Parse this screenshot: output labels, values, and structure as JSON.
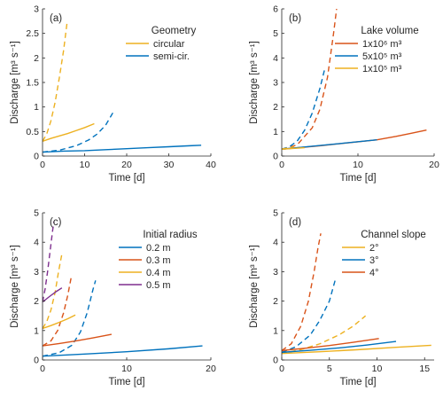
{
  "colors": {
    "blue": "#0072BD",
    "orange": "#D95319",
    "yellow": "#EDB120",
    "purple": "#7E2F8E",
    "axis": "#262626"
  },
  "chart_data": [
    {
      "id": "a",
      "type": "line",
      "panel_label": "(a)",
      "xlabel": "Time [d]",
      "ylabel": "Discharge [m³ s⁻¹]",
      "xlim": [
        0,
        40
      ],
      "ylim": [
        0,
        3
      ],
      "xticks": [
        0,
        10,
        20,
        30,
        40
      ],
      "xtick_labels": [
        "0",
        "10",
        "20",
        "30",
        "40"
      ],
      "yticks": [
        0,
        0.5,
        1,
        1.5,
        2,
        2.5,
        3
      ],
      "ytick_labels": [
        "0",
        "0.5",
        "1",
        "1.5",
        "2",
        "2.5",
        "3"
      ],
      "legend": {
        "title": "Geometry",
        "position": "upper-right",
        "entries": [
          {
            "label": "circular",
            "color": "#EDB120"
          },
          {
            "label": "semi-cir.",
            "color": "#0072BD"
          }
        ]
      },
      "series": [
        {
          "name": "circular",
          "color": "#EDB120",
          "style": "solid",
          "points": [
            [
              0,
              0.3
            ],
            [
              2,
              0.36
            ],
            [
              4,
              0.41
            ],
            [
              6,
              0.46
            ],
            [
              8,
              0.52
            ],
            [
              10,
              0.58
            ],
            [
              12.3,
              0.66
            ]
          ]
        },
        {
          "color": "#EDB120",
          "style": "dashed",
          "points": [
            [
              0,
              0.3
            ],
            [
              1,
              0.45
            ],
            [
              2,
              0.72
            ],
            [
              3,
              1.1
            ],
            [
              4,
              1.6
            ],
            [
              5,
              2.15
            ],
            [
              5.8,
              2.7
            ]
          ]
        },
        {
          "name": "semi-cir.",
          "color": "#0072BD",
          "style": "solid",
          "points": [
            [
              0,
              0.08
            ],
            [
              5,
              0.1
            ],
            [
              10,
              0.11
            ],
            [
              15,
              0.13
            ],
            [
              20,
              0.15
            ],
            [
              25,
              0.17
            ],
            [
              30,
              0.19
            ],
            [
              35,
              0.21
            ],
            [
              37.7,
              0.22
            ]
          ]
        },
        {
          "color": "#0072BD",
          "style": "dashed",
          "points": [
            [
              0,
              0.08
            ],
            [
              4,
              0.12
            ],
            [
              8,
              0.21
            ],
            [
              11,
              0.33
            ],
            [
              13,
              0.45
            ],
            [
              15,
              0.63
            ],
            [
              16.7,
              0.88
            ]
          ]
        }
      ]
    },
    {
      "id": "b",
      "type": "line",
      "panel_label": "(b)",
      "xlabel": "Time [d]",
      "ylabel": "Discharge [m³ s⁻¹]",
      "xlim": [
        0,
        20
      ],
      "ylim": [
        0,
        6
      ],
      "xticks": [
        0,
        10,
        20
      ],
      "xtick_labels": [
        "0",
        "10",
        "20"
      ],
      "yticks": [
        0,
        1,
        2,
        3,
        4,
        5,
        6
      ],
      "ytick_labels": [
        "0",
        "1",
        "2",
        "3",
        "4",
        "5",
        "6"
      ],
      "legend": {
        "title": "Lake volume",
        "position": "upper-right",
        "entries": [
          {
            "label": "1x10⁶ m³",
            "color": "#D95319"
          },
          {
            "label": "5x10⁵ m³",
            "color": "#0072BD"
          },
          {
            "label": "1x10⁵ m³",
            "color": "#EDB120"
          }
        ]
      },
      "series": [
        {
          "name": "1x10⁶ m³",
          "color": "#D95319",
          "style": "solid",
          "points": [
            [
              0,
              0.28
            ],
            [
              5,
              0.42
            ],
            [
              10,
              0.58
            ],
            [
              12.5,
              0.66
            ],
            [
              15,
              0.8
            ],
            [
              17,
              0.93
            ],
            [
              19,
              1.06
            ]
          ]
        },
        {
          "color": "#D95319",
          "style": "dashed",
          "points": [
            [
              0,
              0.28
            ],
            [
              2,
              0.45
            ],
            [
              4,
              1.15
            ],
            [
              5,
              1.9
            ],
            [
              6,
              3.2
            ],
            [
              6.8,
              5.0
            ],
            [
              7.2,
              6.0
            ]
          ]
        },
        {
          "name": "5x10⁵ m³",
          "color": "#0072BD",
          "style": "solid",
          "points": [
            [
              0,
              0.28
            ],
            [
              4,
              0.4
            ],
            [
              8,
              0.52
            ],
            [
              12.5,
              0.66
            ]
          ]
        },
        {
          "color": "#0072BD",
          "style": "dashed",
          "points": [
            [
              0,
              0.28
            ],
            [
              1,
              0.38
            ],
            [
              2,
              0.6
            ],
            [
              3,
              1.05
            ],
            [
              4,
              1.75
            ],
            [
              5,
              2.75
            ],
            [
              5.6,
              3.5
            ]
          ]
        },
        {
          "name": "1x10⁵ m³",
          "color": "#EDB120",
          "style": "solid",
          "points": [
            [
              0,
              0.28
            ],
            [
              1.5,
              0.31
            ],
            [
              3,
              0.34
            ]
          ]
        },
        {
          "color": "#EDB120",
          "style": "dashed",
          "points": [
            [
              0,
              0.28
            ],
            [
              0.8,
              0.33
            ],
            [
              1.6,
              0.38
            ]
          ]
        }
      ]
    },
    {
      "id": "c",
      "type": "line",
      "panel_label": "(c)",
      "xlabel": "Time [d]",
      "ylabel": "Discharge [m³ s⁻¹]",
      "xlim": [
        0,
        20
      ],
      "ylim": [
        0,
        5
      ],
      "xticks": [
        0,
        10,
        20
      ],
      "xtick_labels": [
        "0",
        "10",
        "20"
      ],
      "yticks": [
        0,
        1,
        2,
        3,
        4,
        5
      ],
      "ytick_labels": [
        "0",
        "1",
        "2",
        "3",
        "4",
        "5"
      ],
      "legend": {
        "title": "Initial radius",
        "position": "upper-right",
        "entries": [
          {
            "label": "0.2 m",
            "color": "#0072BD"
          },
          {
            "label": "0.3 m",
            "color": "#D95319"
          },
          {
            "label": "0.4 m",
            "color": "#EDB120"
          },
          {
            "label": "0.5 m",
            "color": "#7E2F8E"
          }
        ]
      },
      "series": [
        {
          "name": "0.2 m",
          "color": "#0072BD",
          "style": "solid",
          "points": [
            [
              0,
              0.13
            ],
            [
              5,
              0.2
            ],
            [
              10,
              0.28
            ],
            [
              15,
              0.38
            ],
            [
              19,
              0.48
            ]
          ]
        },
        {
          "color": "#0072BD",
          "style": "dashed",
          "points": [
            [
              0,
              0.13
            ],
            [
              2,
              0.25
            ],
            [
              3.5,
              0.5
            ],
            [
              4.5,
              0.95
            ],
            [
              5.3,
              1.6
            ],
            [
              6,
              2.4
            ],
            [
              6.3,
              2.7
            ]
          ]
        },
        {
          "name": "0.3 m",
          "color": "#D95319",
          "style": "solid",
          "points": [
            [
              0,
              0.48
            ],
            [
              2,
              0.56
            ],
            [
              4,
              0.65
            ],
            [
              6,
              0.75
            ],
            [
              8.2,
              0.87
            ]
          ]
        },
        {
          "color": "#D95319",
          "style": "dashed",
          "points": [
            [
              0,
              0.48
            ],
            [
              1,
              0.65
            ],
            [
              1.8,
              1.0
            ],
            [
              2.5,
              1.6
            ],
            [
              3,
              2.2
            ],
            [
              3.4,
              2.8
            ]
          ]
        },
        {
          "name": "0.4 m",
          "color": "#EDB120",
          "style": "solid",
          "points": [
            [
              0,
              1.07
            ],
            [
              1,
              1.17
            ],
            [
              2,
              1.28
            ],
            [
              3,
              1.4
            ],
            [
              3.9,
              1.53
            ]
          ]
        },
        {
          "color": "#EDB120",
          "style": "dashed",
          "points": [
            [
              0,
              1.07
            ],
            [
              0.5,
              1.3
            ],
            [
              1,
              1.7
            ],
            [
              1.5,
              2.3
            ],
            [
              1.9,
              3.0
            ],
            [
              2.3,
              3.6
            ]
          ]
        },
        {
          "name": "0.5 m",
          "color": "#7E2F8E",
          "style": "solid",
          "points": [
            [
              0,
              1.97
            ],
            [
              0.8,
              2.15
            ],
            [
              1.6,
              2.32
            ],
            [
              2.3,
              2.45
            ]
          ]
        },
        {
          "color": "#7E2F8E",
          "style": "dashed",
          "points": [
            [
              0,
              1.97
            ],
            [
              0.3,
              2.4
            ],
            [
              0.6,
              3.0
            ],
            [
              0.9,
              3.7
            ],
            [
              1.2,
              4.4
            ],
            [
              1.35,
              4.7
            ]
          ]
        }
      ]
    },
    {
      "id": "d",
      "type": "line",
      "panel_label": "(d)",
      "xlabel": "Time [d]",
      "ylabel": "Discharge [m³ s⁻¹]",
      "xlim": [
        0,
        16
      ],
      "ylim": [
        0,
        5
      ],
      "xticks": [
        0,
        5,
        10,
        15
      ],
      "xtick_labels": [
        "0",
        "5",
        "10",
        "15"
      ],
      "yticks": [
        0,
        1,
        2,
        3,
        4,
        5
      ],
      "ytick_labels": [
        "0",
        "1",
        "2",
        "3",
        "4",
        "5"
      ],
      "legend": {
        "title": "Channel slope",
        "position": "upper-right",
        "entries": [
          {
            "label": "2°",
            "color": "#EDB120"
          },
          {
            "label": "3°",
            "color": "#0072BD"
          },
          {
            "label": "4°",
            "color": "#D95319"
          }
        ]
      },
      "series": [
        {
          "name": "2°",
          "color": "#EDB120",
          "style": "solid",
          "points": [
            [
              0,
              0.22
            ],
            [
              4,
              0.28
            ],
            [
              8,
              0.35
            ],
            [
              12,
              0.43
            ],
            [
              15.7,
              0.5
            ]
          ]
        },
        {
          "color": "#EDB120",
          "style": "dashed",
          "points": [
            [
              0,
              0.22
            ],
            [
              2,
              0.35
            ],
            [
              4,
              0.55
            ],
            [
              6,
              0.85
            ],
            [
              7.5,
              1.15
            ],
            [
              8.8,
              1.5
            ]
          ]
        },
        {
          "name": "3°",
          "color": "#0072BD",
          "style": "solid",
          "points": [
            [
              0,
              0.26
            ],
            [
              3,
              0.33
            ],
            [
              6,
              0.41
            ],
            [
              9,
              0.51
            ],
            [
              12,
              0.63
            ]
          ]
        },
        {
          "color": "#0072BD",
          "style": "dashed",
          "points": [
            [
              0,
              0.26
            ],
            [
              1.5,
              0.45
            ],
            [
              3,
              0.85
            ],
            [
              4,
              1.35
            ],
            [
              5,
              2.0
            ],
            [
              5.6,
              2.7
            ]
          ]
        },
        {
          "name": "4°",
          "color": "#D95319",
          "style": "solid",
          "points": [
            [
              0,
              0.32
            ],
            [
              2.5,
              0.4
            ],
            [
              5,
              0.49
            ],
            [
              7.5,
              0.6
            ],
            [
              10.2,
              0.73
            ]
          ]
        },
        {
          "color": "#D95319",
          "style": "dashed",
          "points": [
            [
              0,
              0.32
            ],
            [
              1,
              0.55
            ],
            [
              2,
              1.15
            ],
            [
              2.8,
              2.0
            ],
            [
              3.4,
              3.0
            ],
            [
              3.8,
              3.8
            ],
            [
              4.1,
              4.3
            ]
          ]
        }
      ]
    }
  ]
}
